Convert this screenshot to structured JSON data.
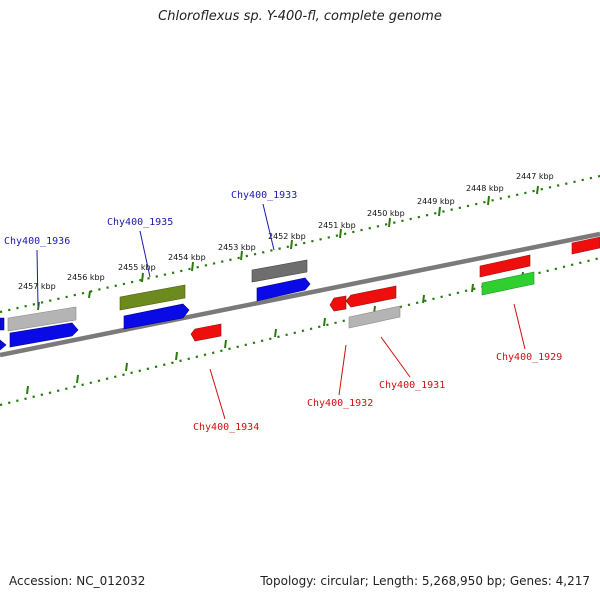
{
  "title": "Chloroflexus sp. Y-400-fl, complete genome",
  "footer": {
    "accession": "Accession: NC_012032",
    "summary": "Topology: circular; Length: 5,268,950 bp; Genes: 4,217"
  },
  "scale_ticks": [
    "2447 kbp",
    "2448 kbp",
    "2449 kbp",
    "2450 kbp",
    "2451 kbp",
    "2452 kbp",
    "2453 kbp",
    "2454 kbp",
    "2455 kbp",
    "2456 kbp",
    "2457 kbp"
  ],
  "gene_labels": {
    "forward": [
      "Chy400_1936",
      "Chy400_1935",
      "Chy400_1933"
    ],
    "reverse": [
      "Chy400_1934",
      "Chy400_1932",
      "Chy400_1931",
      "Chy400_1929"
    ]
  },
  "colors": {
    "forward_label": "#1a1aaa",
    "reverse_label": "#cc1111",
    "backbone": "#7a7a7a",
    "scale": "#2a7a10",
    "blue": "#0a0ae6",
    "red": "#ee0e0e",
    "gray": "#b4b4b4",
    "darkgray": "#6e6e6e",
    "olive": "#6d8a1e",
    "green": "#2fcf2f"
  }
}
